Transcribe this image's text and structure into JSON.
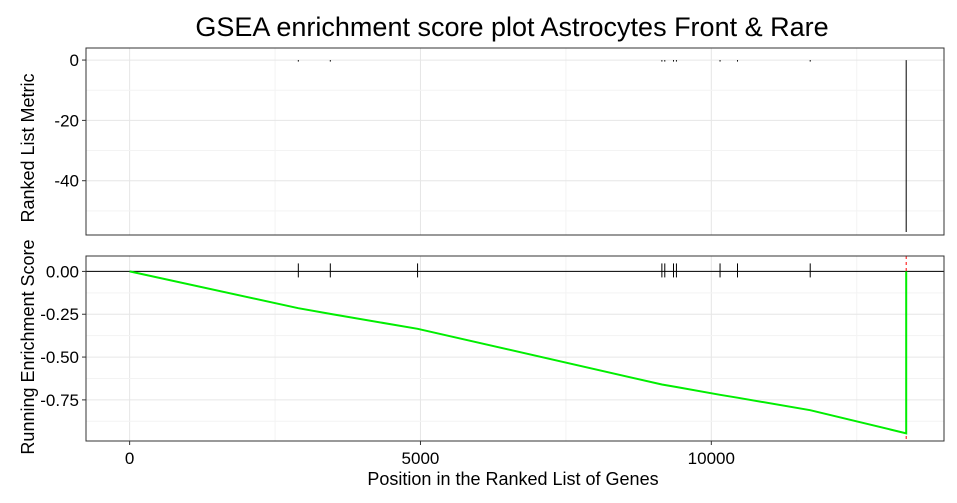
{
  "chart_data": {
    "type": "line",
    "title": "GSEA enrichment score plot Astrocytes Front & Rare",
    "xlabel": "Position in the Ranked List of Genes",
    "xlim": [
      -750,
      14000
    ],
    "x_ticks": [
      0,
      5000,
      10000
    ],
    "x_tick_labels": [
      "0",
      "5000",
      "10000"
    ],
    "top_panel": {
      "ylabel": "Ranked List Metric",
      "ylim": [
        -58,
        4
      ],
      "y_ticks": [
        0,
        -20,
        -40
      ],
      "y_tick_labels": [
        "0",
        "-20",
        "-40"
      ],
      "metric_bars": [
        {
          "x": 2900,
          "y": -0.5
        },
        {
          "x": 3450,
          "y": -0.5
        },
        {
          "x": 9150,
          "y": -0.5
        },
        {
          "x": 9200,
          "y": -0.5
        },
        {
          "x": 9350,
          "y": -0.5
        },
        {
          "x": 9400,
          "y": -0.5
        },
        {
          "x": 10150,
          "y": -0.5
        },
        {
          "x": 10450,
          "y": -0.5
        },
        {
          "x": 11700,
          "y": -0.5
        },
        {
          "x": 13350,
          "y": -57
        }
      ]
    },
    "bottom_panel": {
      "ylabel": "Running Enrichment Score",
      "ylim": [
        -0.99,
        0.09
      ],
      "y_ticks": [
        0,
        -0.25,
        -0.5,
        -0.75
      ],
      "y_tick_labels": [
        "0.00",
        "-0.25",
        "-0.50",
        "-0.75"
      ],
      "hits": [
        2900,
        3450,
        4950,
        9150,
        9200,
        9350,
        9400,
        10150,
        10450,
        11700
      ],
      "series": [
        {
          "color": "#00ee00",
          "x": [
            0,
            2900,
            3450,
            4950,
            9150,
            9400,
            10150,
            10450,
            11700,
            13350,
            13350
          ],
          "y": [
            0,
            -0.215,
            -0.248,
            -0.335,
            -0.66,
            -0.675,
            -0.72,
            -0.737,
            -0.81,
            -0.945,
            0
          ]
        }
      ],
      "zero_line": 0,
      "marker_line": {
        "x": 13350,
        "color": "#ff0000"
      }
    }
  }
}
